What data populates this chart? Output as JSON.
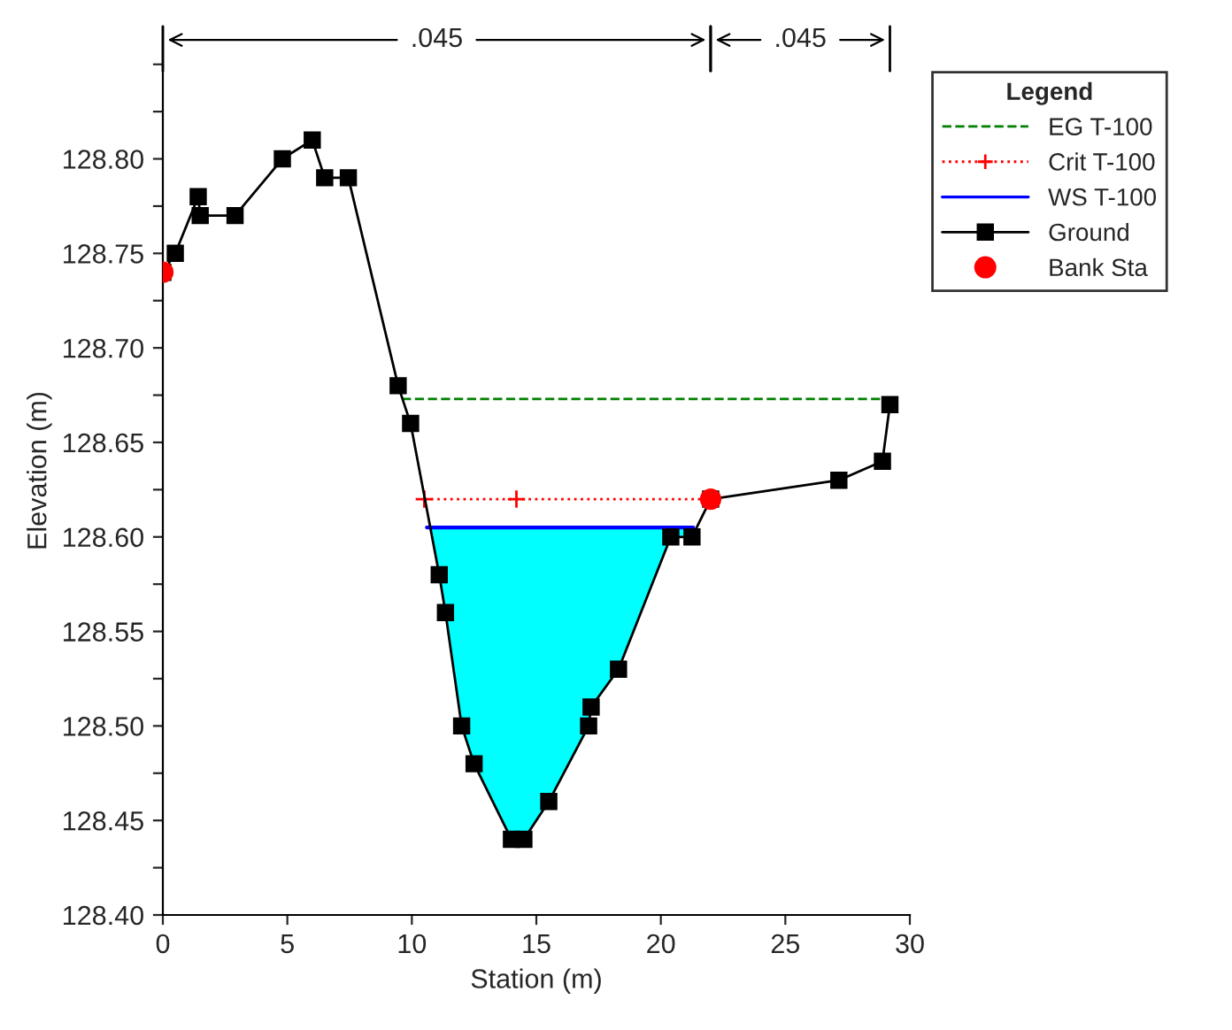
{
  "chart_data": {
    "type": "line",
    "xlabel": "Station (m)",
    "ylabel": "Elevation (m)",
    "legend_title": "Legend",
    "legend": "right",
    "xlim": [
      0,
      30
    ],
    "xticks": [
      0,
      5,
      10,
      15,
      20,
      25,
      30
    ],
    "ylim": [
      128.4,
      128.87
    ],
    "yticks": [
      {
        "value": 128.4,
        "label": "128.40"
      },
      {
        "value": 128.425,
        "label": null
      },
      {
        "value": 128.45,
        "label": "128.45"
      },
      {
        "value": 128.475,
        "label": null
      },
      {
        "value": 128.5,
        "label": "128.50"
      },
      {
        "value": 128.525,
        "label": null
      },
      {
        "value": 128.55,
        "label": "128.55"
      },
      {
        "value": 128.575,
        "label": null
      },
      {
        "value": 128.6,
        "label": "128.60"
      },
      {
        "value": 128.625,
        "label": null
      },
      {
        "value": 128.65,
        "label": "128.65"
      },
      {
        "value": 128.675,
        "label": null
      },
      {
        "value": 128.7,
        "label": "128.70"
      },
      {
        "value": 128.725,
        "label": null
      },
      {
        "value": 128.75,
        "label": "128.75"
      },
      {
        "value": 128.775,
        "label": null
      },
      {
        "value": 128.8,
        "label": "128.80"
      },
      {
        "value": 128.825,
        "label": null
      },
      {
        "value": 128.85,
        "label": null
      }
    ],
    "grid": false,
    "annotations": [
      ".045",
      ".045"
    ],
    "series": [
      {
        "name": "EG T-100",
        "color": "#008000",
        "line_style": "dashed",
        "marker": "none",
        "x": [
          9.6,
          29.2
        ],
        "values": [
          128.673,
          128.673
        ]
      },
      {
        "name": "Crit T-100",
        "color": "#ff0000",
        "line_style": "dotted",
        "marker": "cross",
        "x": [
          10.5,
          14.2,
          22.0
        ],
        "values": [
          128.62,
          128.62,
          128.62
        ]
      },
      {
        "name": "WS T-100",
        "type": "line",
        "color": "#0000ff",
        "line_style": "solid",
        "marker": "none",
        "x": [
          10.6,
          21.3
        ],
        "values": [
          128.605,
          128.605
        ]
      },
      {
        "name": "Ground",
        "color": "#000000",
        "line_style": "solid",
        "marker": "square",
        "x": [
          0,
          0.5,
          1.42,
          1.5,
          2.9,
          4.8,
          6.0,
          6.5,
          7.45,
          9.45,
          9.95,
          11.1,
          11.35,
          12.0,
          12.5,
          14.0,
          14.5,
          15.5,
          17.1,
          17.2,
          18.3,
          20.4,
          21.25,
          22.0,
          27.15,
          28.9,
          29.2
        ],
        "values": [
          128.74,
          128.75,
          128.78,
          128.77,
          128.77,
          128.8,
          128.81,
          128.79,
          128.79,
          128.68,
          128.66,
          128.58,
          128.56,
          128.5,
          128.48,
          128.44,
          128.44,
          128.46,
          128.5,
          128.51,
          128.53,
          128.6,
          128.6,
          128.62,
          128.63,
          128.64,
          128.67
        ]
      },
      {
        "name": "Bank Sta",
        "type": "scatter",
        "color": "#ff0000",
        "marker": "circle",
        "x": [
          0,
          22.0
        ],
        "values": [
          128.74,
          128.62
        ]
      }
    ]
  }
}
